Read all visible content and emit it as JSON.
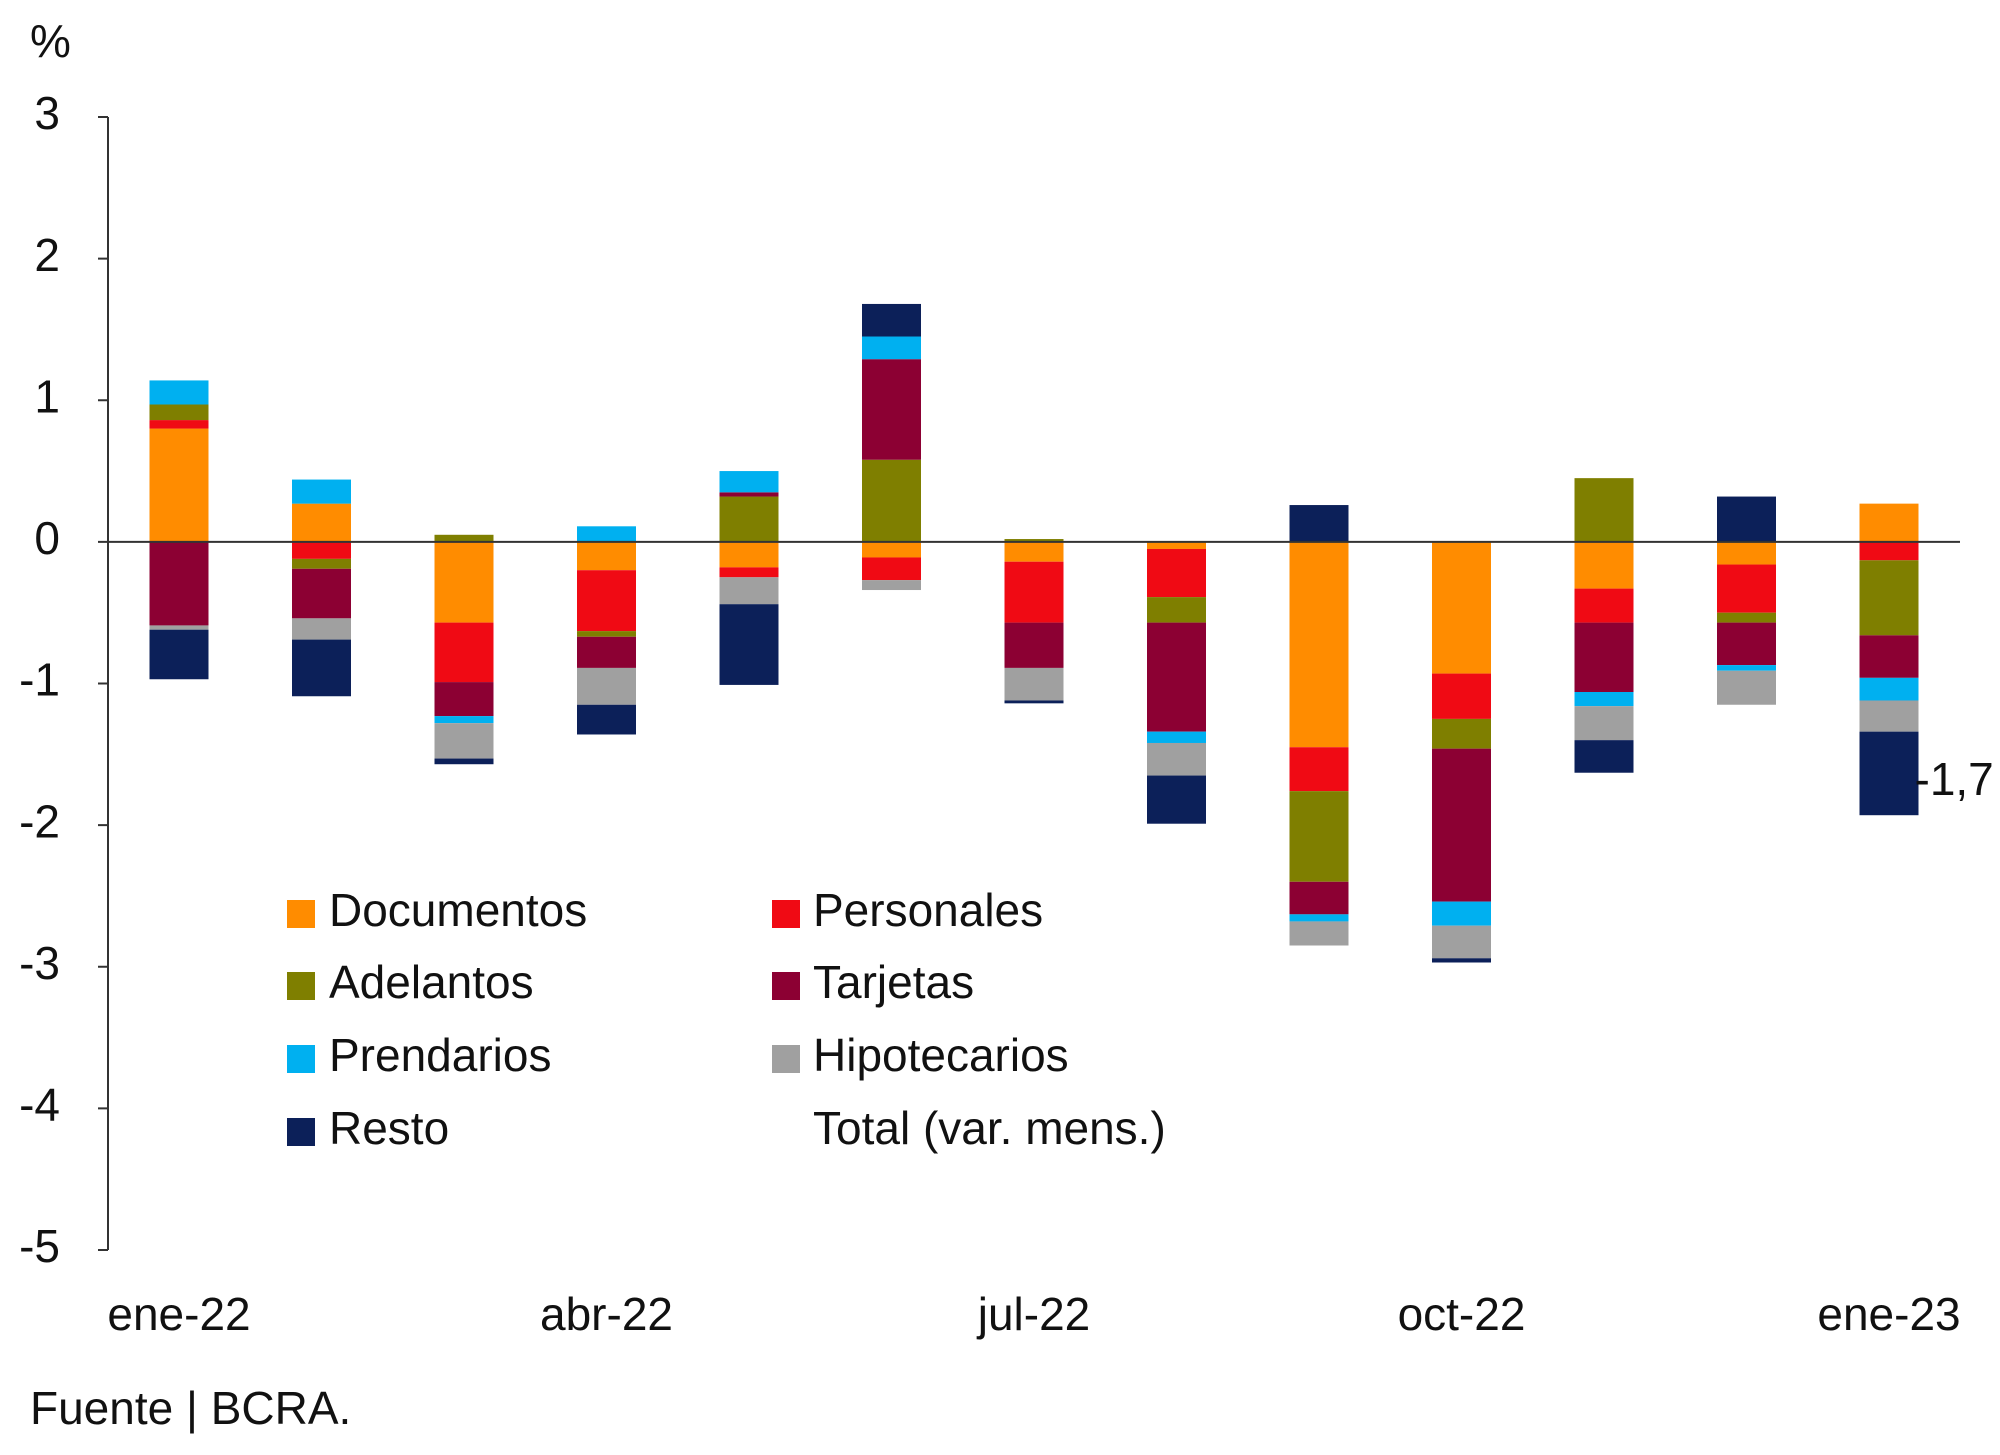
{
  "chart_data": {
    "type": "stacked-bar",
    "unit_label": "%",
    "source": "Fuente | BCRA.",
    "categories": [
      "ene-22",
      null,
      null,
      "abr-22",
      null,
      null,
      "jul-22",
      null,
      null,
      "oct-22",
      null,
      null,
      "ene-23"
    ],
    "ylim": [
      -5,
      3
    ],
    "yticks": [
      -5,
      -4,
      -3,
      -2,
      -1,
      0,
      1,
      2,
      3
    ],
    "series": [
      {
        "name": "Documentos",
        "color": "#ff8c00",
        "values": [
          0.8,
          0.27,
          -0.57,
          -0.2,
          -0.18,
          -0.11,
          -0.14,
          -0.05,
          -1.45,
          -0.93,
          -0.33,
          -0.16,
          0.27
        ]
      },
      {
        "name": "Personales",
        "color": "#f00a14",
        "values": [
          0.06,
          -0.12,
          -0.42,
          -0.43,
          -0.07,
          -0.16,
          -0.43,
          -0.34,
          -0.31,
          -0.32,
          -0.24,
          -0.34,
          -0.13
        ]
      },
      {
        "name": "Adelantos",
        "color": "#7f7f00",
        "values": [
          0.11,
          -0.07,
          0.05,
          -0.04,
          0.32,
          0.58,
          0.02,
          -0.18,
          -0.64,
          -0.21,
          0.45,
          -0.07,
          -0.53
        ]
      },
      {
        "name": "Tarjetas",
        "color": "#8c0033",
        "values": [
          -0.59,
          -0.35,
          -0.24,
          -0.22,
          0.03,
          0.71,
          -0.32,
          -0.77,
          -0.23,
          -1.08,
          -0.49,
          -0.3,
          -0.3
        ]
      },
      {
        "name": "Prendarios",
        "color": "#00b0f0",
        "values": [
          0.17,
          0.17,
          -0.05,
          0.11,
          0.15,
          0.16,
          0,
          -0.08,
          -0.05,
          -0.17,
          -0.1,
          -0.04,
          -0.16
        ]
      },
      {
        "name": "Hipotecarios",
        "color": "#a0a0a0",
        "values": [
          -0.03,
          -0.15,
          -0.25,
          -0.26,
          -0.19,
          -0.07,
          -0.23,
          -0.23,
          -0.17,
          -0.23,
          -0.24,
          -0.24,
          -0.22
        ]
      },
      {
        "name": "Resto",
        "color": "#0c2059",
        "values": [
          -0.35,
          -0.4,
          -0.04,
          -0.21,
          -0.57,
          0.23,
          -0.02,
          -0.34,
          0.26,
          -0.03,
          -0.23,
          0.32,
          -0.59
        ]
      },
      {
        "name": "Total (var. mens.)",
        "color": "#ffffff",
        "kind": "marker",
        "values": [
          null,
          null,
          null,
          null,
          null,
          null,
          null,
          null,
          null,
          null,
          null,
          null,
          -1.7
        ],
        "value_labels": [
          null,
          null,
          null,
          null,
          null,
          null,
          null,
          null,
          null,
          null,
          null,
          null,
          "-1,7"
        ]
      }
    ]
  }
}
